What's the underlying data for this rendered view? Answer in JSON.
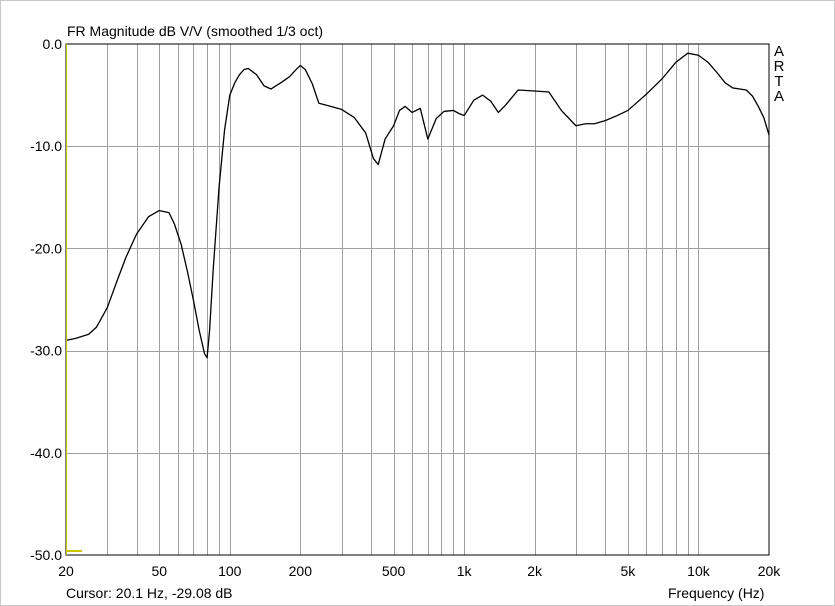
{
  "window": {
    "brand": [
      "A",
      "R",
      "T",
      "A"
    ]
  },
  "cursor_readout": "Cursor: 20.1 Hz, -29.08 dB",
  "chart_data": {
    "type": "line",
    "title": "FR Magnitude dB V/V (smoothed 1/3 oct)",
    "xlabel": "Frequency (Hz)",
    "ylabel": "",
    "x_scale": "log",
    "xlim": [
      20,
      20000
    ],
    "ylim": [
      -50,
      0
    ],
    "x_ticks": [
      {
        "value": 20,
        "label": "20"
      },
      {
        "value": 50,
        "label": "50"
      },
      {
        "value": 100,
        "label": "100"
      },
      {
        "value": 200,
        "label": "200"
      },
      {
        "value": 500,
        "label": "500"
      },
      {
        "value": 1000,
        "label": "1k"
      },
      {
        "value": 2000,
        "label": "2k"
      },
      {
        "value": 5000,
        "label": "5k"
      },
      {
        "value": 10000,
        "label": "10k"
      },
      {
        "value": 20000,
        "label": "20k"
      }
    ],
    "y_ticks": [
      {
        "value": 0,
        "label": "0.0"
      },
      {
        "value": -10,
        "label": "-10.0"
      },
      {
        "value": -20,
        "label": "-20.0"
      },
      {
        "value": -30,
        "label": "-30.0"
      },
      {
        "value": -40,
        "label": "-40.0"
      },
      {
        "value": -50,
        "label": "-50.0"
      }
    ],
    "grid": true,
    "colors": {
      "line": "#000000",
      "grid": "#a0a0a0",
      "cursor": "#c8c800"
    },
    "series": [
      {
        "x": [
          20,
          22,
          25,
          27,
          30,
          33,
          36,
          40,
          45,
          50,
          55,
          58,
          62,
          66,
          70,
          74,
          78,
          80,
          82,
          85,
          90,
          95,
          100,
          105,
          110,
          115,
          120,
          130,
          140,
          150,
          165,
          180,
          190,
          200,
          210,
          225,
          240,
          260,
          300,
          340,
          380,
          410,
          430,
          460,
          500,
          530,
          560,
          600,
          650,
          700,
          760,
          820,
          900,
          950,
          1000,
          1100,
          1200,
          1300,
          1400,
          1500,
          1700,
          2000,
          2300,
          2600,
          3000,
          3300,
          3600,
          4000,
          4500,
          5000,
          6000,
          7000,
          8000,
          9000,
          10000,
          11000,
          12000,
          13000,
          14000,
          15000,
          16000,
          17000,
          18000,
          19000,
          20000
        ],
        "y": [
          -29.0,
          -28.8,
          -28.4,
          -27.7,
          -25.8,
          -23.2,
          -20.9,
          -18.6,
          -16.9,
          -16.3,
          -16.5,
          -17.6,
          -19.6,
          -22.3,
          -25.1,
          -28.0,
          -30.3,
          -30.7,
          -28.0,
          -22.0,
          -14.0,
          -8.4,
          -5.0,
          -3.8,
          -3.0,
          -2.5,
          -2.4,
          -3.0,
          -4.1,
          -4.4,
          -3.8,
          -3.2,
          -2.6,
          -2.1,
          -2.5,
          -3.9,
          -5.8,
          -6.0,
          -6.4,
          -7.2,
          -8.7,
          -11.2,
          -11.8,
          -9.3,
          -8.0,
          -6.5,
          -6.1,
          -6.7,
          -6.3,
          -9.3,
          -7.3,
          -6.6,
          -6.5,
          -6.8,
          -7.0,
          -5.5,
          -5.0,
          -5.6,
          -6.7,
          -6.0,
          -4.5,
          -4.6,
          -4.7,
          -6.5,
          -8.0,
          -7.8,
          -7.8,
          -7.5,
          -7.0,
          -6.5,
          -4.9,
          -3.4,
          -1.8,
          -0.9,
          -1.1,
          -1.8,
          -2.8,
          -3.8,
          -4.3,
          -4.4,
          -4.5,
          -5.1,
          -6.1,
          -7.2,
          -8.9
        ]
      }
    ]
  }
}
